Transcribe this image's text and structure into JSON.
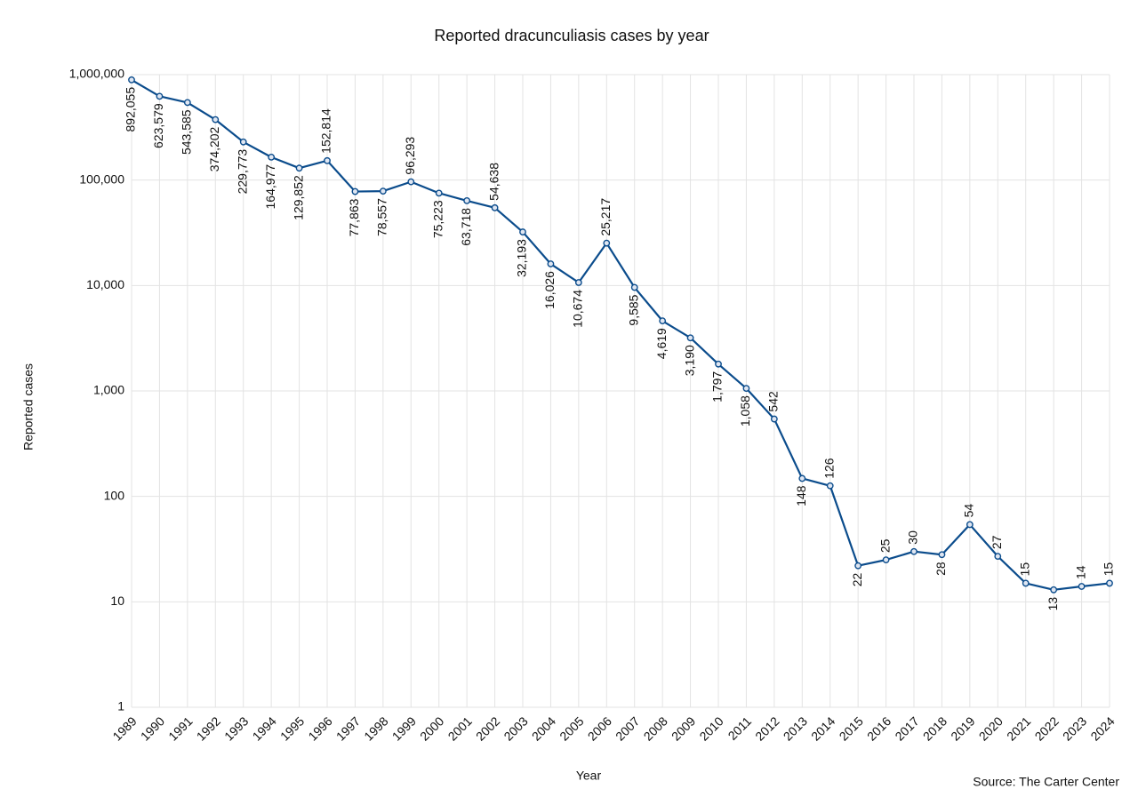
{
  "chart_data": {
    "type": "line",
    "title": "Reported dracunculiasis cases by year",
    "x_label": "Year",
    "y_label": "Reported cases",
    "source": "Source: The Carter Center",
    "categories": [
      "1989",
      "1990",
      "1991",
      "1992",
      "1993",
      "1994",
      "1995",
      "1996",
      "1997",
      "1998",
      "1999",
      "2000",
      "2001",
      "2002",
      "2003",
      "2004",
      "2005",
      "2006",
      "2007",
      "2008",
      "2009",
      "2010",
      "2011",
      "2012",
      "2013",
      "2014",
      "2015",
      "2016",
      "2017",
      "2018",
      "2019",
      "2020",
      "2021",
      "2022",
      "2023",
      "2024"
    ],
    "values": [
      892055,
      623579,
      543585,
      374202,
      229773,
      164977,
      129852,
      152814,
      77863,
      78557,
      96293,
      75223,
      63718,
      54638,
      32193,
      16026,
      10674,
      25217,
      9585,
      4619,
      3190,
      1797,
      1058,
      542,
      148,
      126,
      22,
      25,
      30,
      28,
      54,
      27,
      15,
      13,
      14,
      15
    ],
    "value_labels": [
      "892,055",
      "623,579",
      "543,585",
      "374,202",
      "229,773",
      "164,977",
      "129,852",
      "152,814",
      "77,863",
      "78,557",
      "96,293",
      "75,223",
      "63,718",
      "54,638",
      "32,193",
      "16,026",
      "10,674",
      "25,217",
      "9,585",
      "4,619",
      "3,190",
      "1,797",
      "1,058",
      "542",
      "148",
      "126",
      "22",
      "25",
      "30",
      "28",
      "54",
      "27",
      "15",
      "13",
      "14",
      "15"
    ],
    "color": "#0b4c8c",
    "log_y": true,
    "grid": true,
    "ylim": [
      1,
      1000000
    ],
    "yticks": [
      1,
      10,
      100,
      {
        "value": 1000,
        "label": "1,000"
      },
      {
        "value": 10000,
        "label": "10,000"
      },
      {
        "value": 100000,
        "label": "100,000"
      },
      {
        "value": 1000000,
        "label": "1,000,000"
      }
    ]
  }
}
